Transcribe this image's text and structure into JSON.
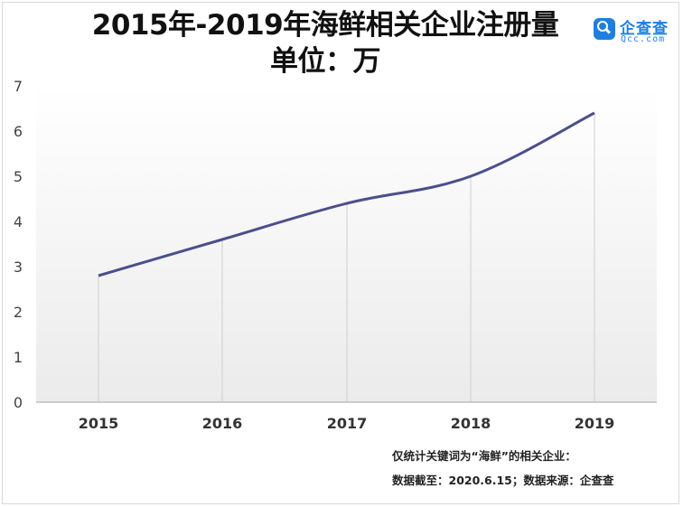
{
  "title_line1": "2015年-2019年海鲜相关企业注册量",
  "title_line2": "单位：万",
  "logo": {
    "name": "企查查",
    "url": "Qcc.com",
    "color": "#1f7fe0"
  },
  "notes": [
    "仅统计关键词为“海鲜”的相关企业：",
    "数据截至：2020.6.15；数据来源：企查查"
  ],
  "chart_data": {
    "type": "line",
    "title": "2015年-2019年海鲜相关企业注册量",
    "subtitle": "单位：万",
    "categories": [
      "2015",
      "2016",
      "2017",
      "2018",
      "2019"
    ],
    "series": [
      {
        "values": [
          2.8,
          3.6,
          4.4,
          5.0,
          6.4
        ],
        "color": "#4b4f8c"
      }
    ],
    "ylim": [
      0,
      7
    ],
    "yticks": [
      0,
      1,
      2,
      3,
      4,
      5,
      6,
      7
    ],
    "xlabel": "",
    "ylabel": "",
    "grid": "vertical drop lines to x-axis",
    "legend": "none"
  }
}
